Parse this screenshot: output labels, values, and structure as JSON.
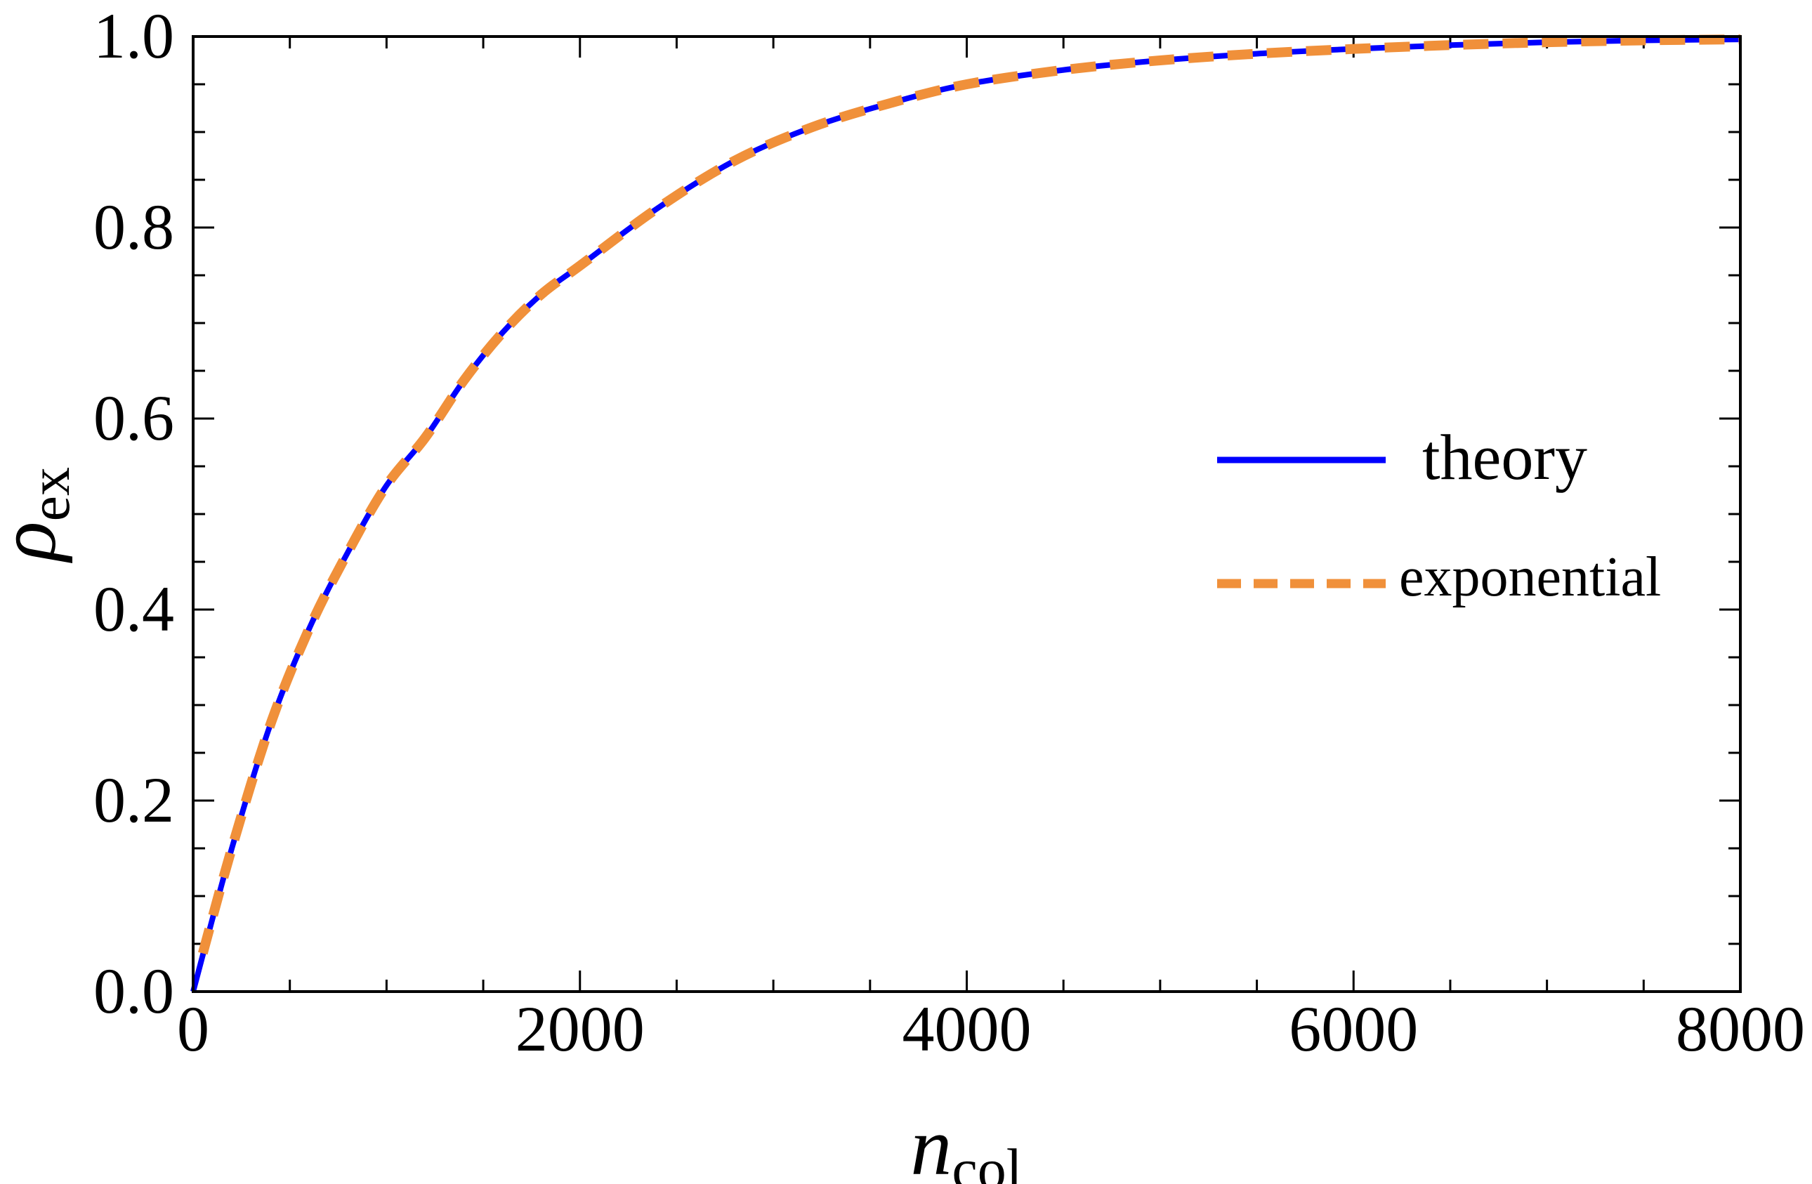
{
  "chart_data": {
    "type": "line",
    "xlabel": {
      "main": "n",
      "sub": "col"
    },
    "ylabel": {
      "main": "ρ",
      "sub": "ex"
    },
    "xlim": [
      0,
      8000
    ],
    "ylim": [
      0,
      1.0
    ],
    "x_ticks": [
      "0",
      "2000",
      "4000",
      "6000",
      "8000"
    ],
    "y_ticks": [
      "0.0",
      "0.2",
      "0.4",
      "0.6",
      "0.8",
      "1.0"
    ],
    "grid": false,
    "legend_position": "right",
    "colors": {
      "theory": "#0000ff",
      "exponential": "#f0903a"
    },
    "series": [
      {
        "name": "theory",
        "style": "solid",
        "x": [
          0,
          200,
          400,
          600,
          800,
          1000,
          1200,
          1400,
          1600,
          1800,
          2000,
          2400,
          2800,
          3200,
          3600,
          4000,
          4500,
          5000,
          5500,
          6000,
          6500,
          7000,
          7500,
          8000
        ],
        "y": [
          0.0,
          0.15,
          0.28,
          0.38,
          0.46,
          0.53,
          0.58,
          0.64,
          0.69,
          0.73,
          0.76,
          0.82,
          0.87,
          0.905,
          0.93,
          0.95,
          0.965,
          0.975,
          0.982,
          0.987,
          0.991,
          0.994,
          0.996,
          0.997
        ]
      },
      {
        "name": "exponential",
        "style": "dashed",
        "x": [
          50,
          200,
          400,
          600,
          800,
          1000,
          1200,
          1400,
          1600,
          1800,
          2000,
          2400,
          2800,
          3200,
          3600,
          4000,
          4500,
          5000,
          5500,
          6000,
          6500,
          7000,
          7500,
          8000
        ],
        "y": [
          0.04,
          0.15,
          0.28,
          0.38,
          0.46,
          0.53,
          0.58,
          0.64,
          0.69,
          0.73,
          0.76,
          0.82,
          0.87,
          0.905,
          0.93,
          0.95,
          0.965,
          0.975,
          0.982,
          0.987,
          0.991,
          0.994,
          0.996,
          0.997
        ]
      }
    ]
  }
}
